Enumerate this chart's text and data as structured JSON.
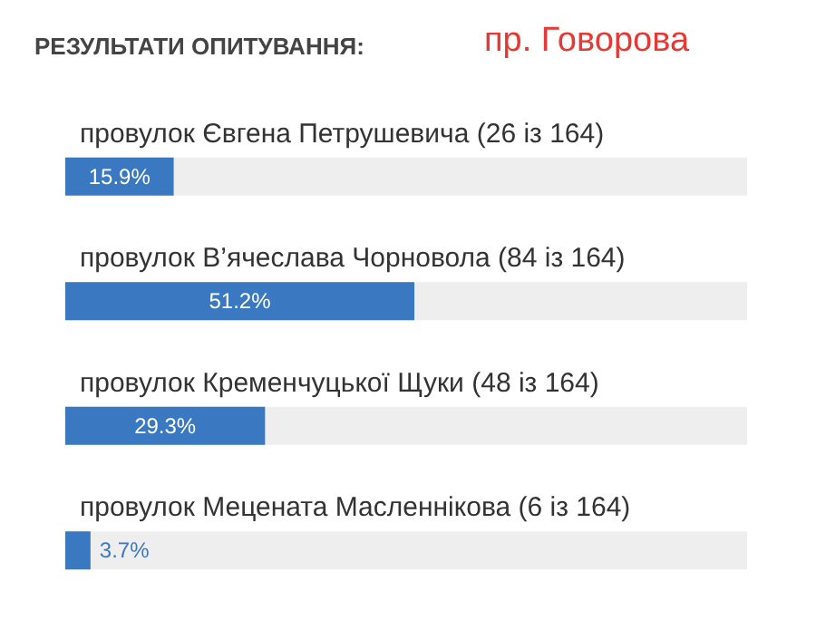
{
  "chart_data": {
    "type": "bar",
    "orientation": "horizontal",
    "title": "РЕЗУЛЬТАТИ ОПИТУВАННЯ:",
    "subtitle": "пр. Говорова",
    "categories": [
      "провулок Євгена Петрушевича (26 із 164)",
      "провулок В’ячеслава Чорновола (84 із 164)",
      "провулок Кременчуцької Щуки (48 із 164)",
      "провулок Мецената Масленнікова (6 із 164)"
    ],
    "values": [
      15.9,
      51.2,
      29.3,
      3.7
    ],
    "value_labels": [
      "15.9%",
      "51.2%",
      "29.3%",
      "3.7%"
    ],
    "color": "#3a78c2",
    "xlim": [
      0,
      100
    ],
    "tick_labels": false
  }
}
